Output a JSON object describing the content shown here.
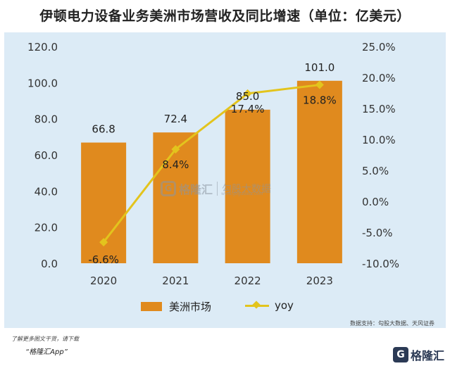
{
  "title": "伊顿电力设备业务美洲市场营收及同比增速（单位：亿美元）",
  "chart_data": {
    "type": "bar",
    "categories": [
      "2020",
      "2021",
      "2022",
      "2023"
    ],
    "series": [
      {
        "name": "美洲市场",
        "type": "bar",
        "axis": "left",
        "values": [
          66.8,
          72.4,
          85.0,
          101.0
        ],
        "labels": [
          "66.8",
          "72.4",
          "85.0",
          "101.0"
        ],
        "color": "#e08a1e"
      },
      {
        "name": "yoy",
        "type": "line",
        "axis": "right",
        "values": [
          -6.6,
          8.4,
          17.4,
          18.8
        ],
        "labels": [
          "-6.6%",
          "8.4%",
          "17.4%",
          "18.8%"
        ],
        "color": "#e3c41d"
      }
    ],
    "y_left": {
      "ylim": [
        0,
        120
      ],
      "ticks": [
        "0.0",
        "20.0",
        "40.0",
        "60.0",
        "80.0",
        "100.0",
        "120.0"
      ]
    },
    "y_right": {
      "ylim": [
        -10,
        25
      ],
      "ticks": [
        "-10.0%",
        "-5.0%",
        "0.0%",
        "5.0%",
        "10.0%",
        "15.0%",
        "20.0%",
        "25.0%"
      ]
    },
    "grid": false,
    "legend": "bottom"
  },
  "watermark": {
    "brand": "格隆汇",
    "sub": "勾股大数据",
    "url": "www.gogudata.com"
  },
  "source": "数据支持：勾股大数据、天风证券",
  "footer": {
    "note": "了解更多图文干货，请下载",
    "app": "“格隆汇App”"
  },
  "brand": {
    "logo": "G",
    "name": "格隆汇"
  }
}
